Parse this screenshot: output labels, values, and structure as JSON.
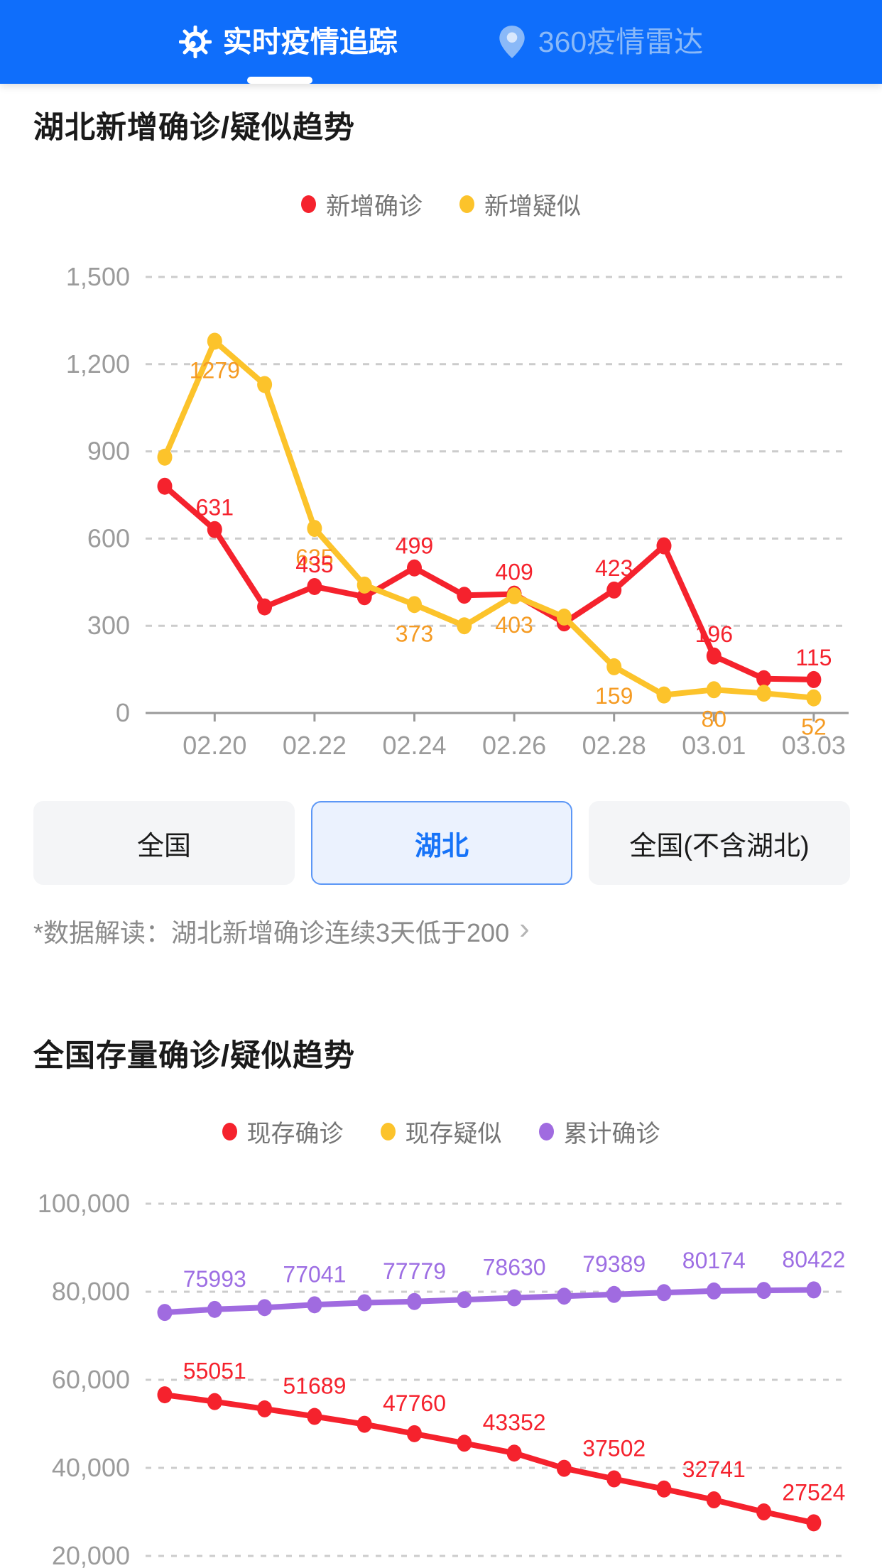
{
  "header": {
    "background_color": "#0f6efb",
    "tabs": [
      {
        "label": "实时疫情追踪",
        "active": true,
        "icon": "virus-icon"
      },
      {
        "label": "360疫情雷达",
        "active": false,
        "icon": "location-pin-icon"
      }
    ]
  },
  "hubei_section": {
    "title": "湖北新增确诊/疑似趋势",
    "legend": [
      {
        "label": "新增确诊",
        "color": "#f5222d"
      },
      {
        "label": "新增疑似",
        "color": "#fcc32b"
      }
    ]
  },
  "region_filters": [
    {
      "label": "全国",
      "selected": false
    },
    {
      "label": "湖北",
      "selected": true
    },
    {
      "label": "全国(不含湖北)",
      "selected": false
    }
  ],
  "data_note": {
    "text": "*数据解读：湖北新增确诊连续3天低于200",
    "chevron": "›"
  },
  "national_section": {
    "title": "全国存量确诊/疑似趋势",
    "legend": [
      {
        "label": "现存确诊",
        "color": "#f5222d"
      },
      {
        "label": "现存疑似",
        "color": "#fcc32b"
      },
      {
        "label": "累计确诊",
        "color": "#a06be0"
      }
    ]
  },
  "chart_data": [
    {
      "type": "line",
      "title": "湖北新增确诊/疑似趋势",
      "n_points": 14,
      "x_ticks": {
        "labels": [
          "02.20",
          "02.22",
          "02.24",
          "02.26",
          "02.28",
          "03.01",
          "03.03"
        ],
        "indices": [
          1,
          3,
          5,
          7,
          9,
          11,
          13
        ]
      },
      "y_axis": {
        "range": [
          0,
          1500
        ],
        "ticks": [
          {
            "value": 1500,
            "label": "1,500"
          },
          {
            "value": 1200,
            "label": "1,200"
          },
          {
            "value": 900,
            "label": "900"
          },
          {
            "value": 600,
            "label": "600"
          },
          {
            "value": 300,
            "label": "300"
          },
          {
            "value": 0,
            "label": "0"
          }
        ]
      },
      "grid": "dashed",
      "legend_position": "top",
      "series": [
        {
          "name": "新增确诊",
          "color": "#f5222d",
          "label_color": "#f5222d",
          "label_position": "above",
          "values": [
            780,
            631,
            365,
            435,
            400,
            499,
            405,
            409,
            310,
            423,
            575,
            196,
            118,
            115
          ],
          "point_labels": {
            "1": "631",
            "3": "435",
            "5": "499",
            "7": "409",
            "9": "423",
            "11": "196",
            "13": "115"
          }
        },
        {
          "name": "新增疑似",
          "color": "#fcc32b",
          "label_color": "#f59b23",
          "label_position": "below",
          "values": [
            880,
            1279,
            1130,
            635,
            440,
            373,
            300,
            403,
            330,
            159,
            62,
            80,
            68,
            52
          ],
          "point_labels": {
            "1": "1279",
            "3": "635",
            "5": "373",
            "7": "403",
            "9": "159",
            "11": "80",
            "13": "52"
          }
        }
      ]
    },
    {
      "type": "line",
      "title": "全国存量确诊/疑似趋势",
      "n_points": 14,
      "clipped_at_bottom": true,
      "y_axis": {
        "range": [
          20000,
          100000
        ],
        "ticks": [
          {
            "value": 100000,
            "label": "100,000"
          },
          {
            "value": 80000,
            "label": "80,000"
          },
          {
            "value": 60000,
            "label": "60,000"
          },
          {
            "value": 40000,
            "label": "40,000"
          },
          {
            "value": 20000,
            "label": "20,000"
          }
        ]
      },
      "grid": "dashed",
      "legend_position": "top",
      "series": [
        {
          "name": "现存确诊",
          "color": "#f5222d",
          "label_color": "#f5222d",
          "label_position": "above",
          "values": [
            56600,
            55051,
            53400,
            51689,
            49900,
            47760,
            45600,
            43352,
            39900,
            37502,
            35200,
            32741,
            30000,
            27524
          ],
          "point_labels": {
            "1": "55051",
            "3": "51689",
            "5": "47760",
            "7": "43352",
            "9": "37502",
            "11": "32741",
            "13": "27524"
          }
        },
        {
          "name": "累计确诊",
          "color": "#a06be0",
          "label_color": "#9d6ee3",
          "label_position": "above",
          "values": [
            75300,
            75993,
            76400,
            77041,
            77500,
            77779,
            78200,
            78630,
            79000,
            79389,
            79800,
            80174,
            80300,
            80422
          ],
          "point_labels": {
            "1": "75993",
            "3": "77041",
            "5": "77779",
            "7": "78630",
            "9": "79389",
            "11": "80174",
            "13": "80422"
          }
        }
      ]
    }
  ]
}
